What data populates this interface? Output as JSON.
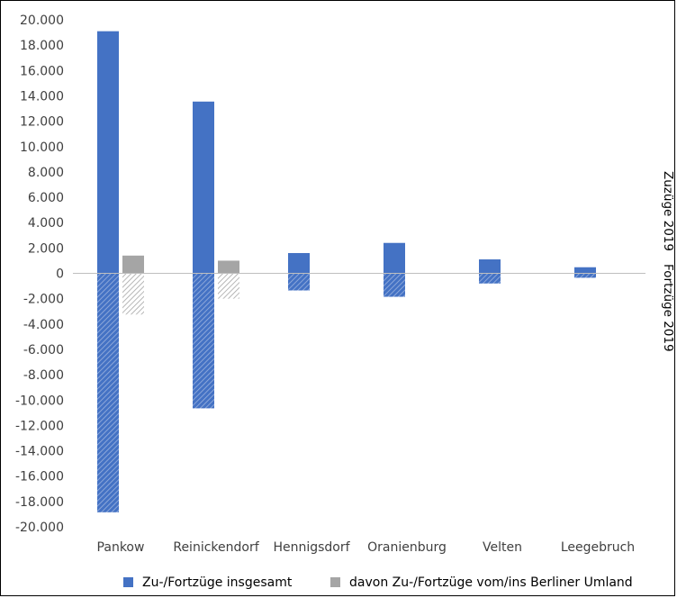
{
  "chart_data": {
    "type": "bar",
    "categories": [
      "Pankow",
      "Reinickendorf",
      "Hennigsdorf",
      "Oranienburg",
      "Velten",
      "Leegebruch"
    ],
    "series": [
      {
        "name": "Zu-/Fortzüge insgesamt",
        "color": "#4472c4",
        "zuzuege": [
          19100,
          13550,
          1600,
          2400,
          1100,
          480
        ],
        "fortzuege": [
          -18850,
          -10650,
          -1350,
          -1850,
          -800,
          -350
        ]
      },
      {
        "name": "davon Zu-/Fortzüge vom/ins Berliner Umland",
        "color": "#a5a5a5",
        "zuzuege": [
          1400,
          1000,
          null,
          null,
          null,
          null
        ],
        "fortzuege": [
          -3250,
          -2000,
          null,
          null,
          null,
          null
        ]
      }
    ],
    "yticks": [
      "20.000",
      "18.000",
      "16.000",
      "14.000",
      "12.000",
      "10.000",
      "8.000",
      "6.000",
      "4.000",
      "2.000",
      "0",
      "-2.000",
      "-4.000",
      "-6.000",
      "-8.000",
      "-10.000",
      "-12.000",
      "-14.000",
      "-16.000",
      "-18.000",
      "-20.000"
    ],
    "ylim": [
      -20000,
      20000
    ],
    "right_labels": {
      "top": "Zuzüge 2019",
      "bottom": "Fortzüge 2019"
    },
    "grid": false,
    "legend_position": "bottom"
  }
}
